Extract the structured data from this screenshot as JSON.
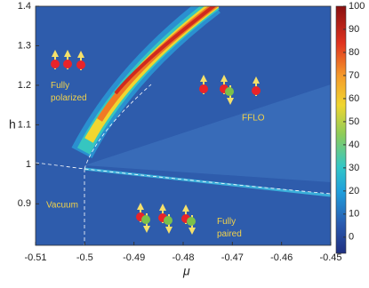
{
  "chart_data": {
    "type": "heatmap",
    "xlabel": "μ",
    "ylabel": "h",
    "xlim": [
      -0.51,
      -0.45
    ],
    "xticks": [
      -0.51,
      -0.5,
      -0.49,
      -0.48,
      -0.47,
      -0.46,
      -0.45
    ],
    "ylim": [
      0.795,
      1.4
    ],
    "yticks": [
      0.9,
      1,
      1.1,
      1.2,
      1.3,
      1.4
    ],
    "colorbar": {
      "lim": [
        -7,
        100
      ],
      "ticks": [
        0,
        10,
        20,
        30,
        40,
        50,
        60,
        70,
        80,
        90,
        100
      ]
    },
    "annotations": [
      "Fully polarized",
      "FFLO",
      "Vacuum",
      "Fully paired"
    ]
  }
}
